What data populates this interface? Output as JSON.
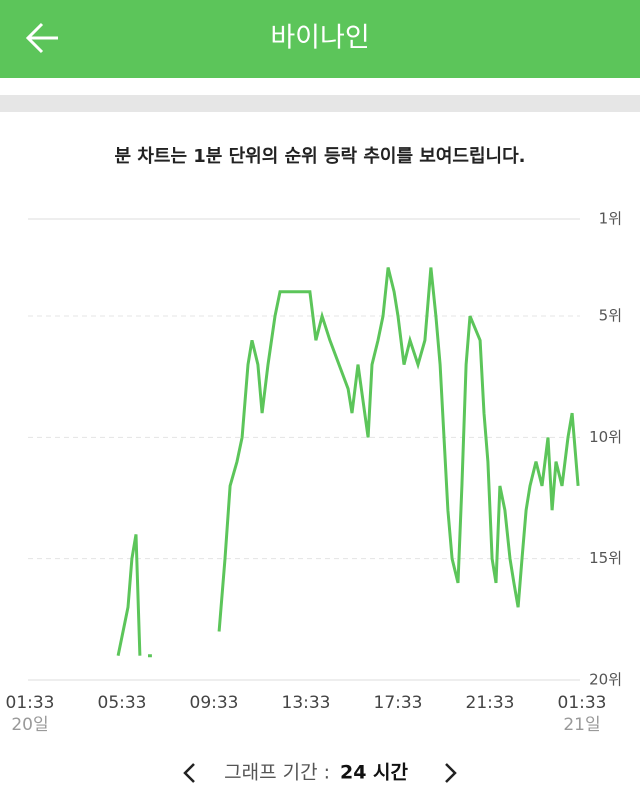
{
  "header": {
    "title": "바이나인"
  },
  "notice": "분 차트는 1분 단위의 순위 등락 추이를 보여드립니다.",
  "chart_data": {
    "type": "line",
    "x": [
      3.83,
      4.26,
      4.43,
      4.61,
      4.78,
      4.9,
      5.13,
      5.3,
      6.0,
      8.22,
      8.48,
      8.7,
      9.0,
      9.22,
      9.48,
      9.65,
      9.91,
      10.09,
      10.35,
      10.65,
      10.87,
      12.17,
      12.43,
      12.7,
      13.04,
      13.83,
      14.0,
      14.26,
      14.7,
      14.87,
      15.13,
      15.35,
      15.57,
      15.83,
      16.0,
      16.26,
      16.52,
      16.87,
      17.17,
      17.43,
      17.65,
      17.83,
      18.0,
      18.17,
      18.35,
      18.61,
      18.78,
      18.96,
      19.13,
      19.57,
      19.74,
      19.91,
      20.09,
      20.26,
      20.43,
      20.65,
      20.87,
      21.04,
      21.22,
      21.39,
      21.57,
      21.74,
      22.0,
      22.26,
      22.52,
      22.7,
      22.87,
      23.13,
      23.39,
      23.57,
      23.83
    ],
    "values": [
      19,
      17,
      15,
      14,
      19,
      null,
      19,
      19,
      null,
      18,
      15,
      12,
      11,
      10,
      7,
      6,
      7,
      9,
      7,
      5,
      4,
      4,
      6,
      5,
      6,
      8,
      9,
      7,
      10,
      7,
      6,
      5,
      3,
      4,
      5,
      7,
      6,
      7,
      6,
      3,
      5,
      7,
      10,
      13,
      15,
      16,
      12,
      7,
      5,
      6,
      9,
      11,
      15,
      16,
      12,
      13,
      15,
      16,
      17,
      15,
      13,
      12,
      11,
      12,
      10,
      13,
      11,
      12,
      10,
      9,
      12
    ],
    "color": "#5cc55a",
    "xlim": [
      0,
      24
    ],
    "xticks": [
      {
        "value": 0,
        "label": "01:33"
      },
      {
        "value": 4,
        "label": "05:33"
      },
      {
        "value": 8,
        "label": "09:33"
      },
      {
        "value": 12,
        "label": "13:33"
      },
      {
        "value": 16,
        "label": "17:33"
      },
      {
        "value": 20,
        "label": "21:33"
      },
      {
        "value": 24,
        "label": "01:33"
      }
    ],
    "date_labels": [
      "20일",
      "21일"
    ],
    "ylim": [
      20,
      1
    ],
    "yticks": [
      {
        "value": 1,
        "label": "1위"
      },
      {
        "value": 5,
        "label": "5위"
      },
      {
        "value": 10,
        "label": "10위"
      },
      {
        "value": 15,
        "label": "15위"
      },
      {
        "value": 20,
        "label": "20위"
      }
    ],
    "grid": true
  },
  "footer": {
    "period_label": "그래프 기간 :",
    "period_value": "24 시간"
  }
}
